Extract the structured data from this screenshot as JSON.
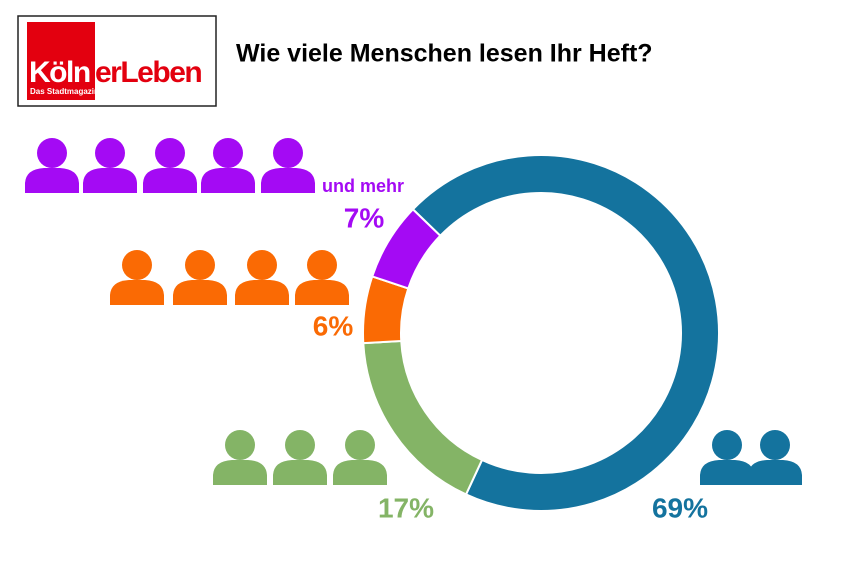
{
  "logo": {
    "parts": [
      "Köln",
      "erLeben"
    ],
    "subtitle": "Das Stadtmagazin"
  },
  "chart_data": {
    "type": "donut",
    "title": "Wie viele Menschen lesen Ihr Heft?",
    "values": [
      69,
      17,
      6,
      7
    ],
    "value_labels": [
      "69%",
      "17%",
      "6%",
      "7%"
    ],
    "colors": [
      "#14739e",
      "#84b466",
      "#fa6a04",
      "#a40af4"
    ],
    "annotation": "und mehr"
  }
}
